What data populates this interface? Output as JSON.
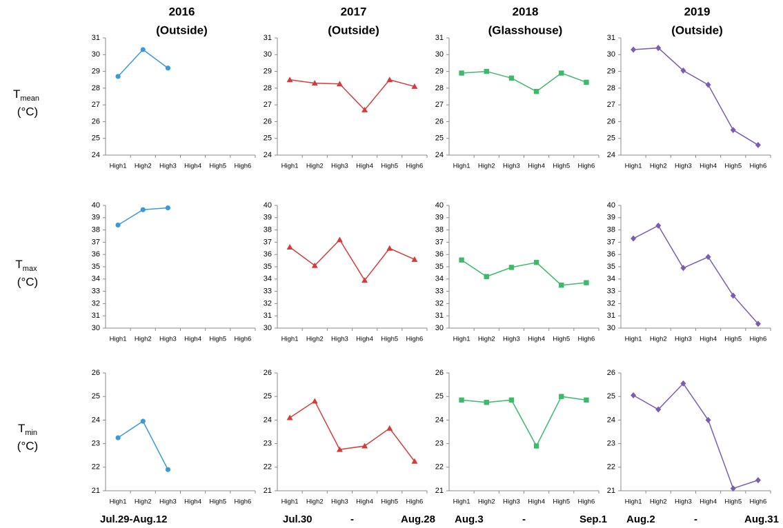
{
  "columns": [
    {
      "title": "2016",
      "subtitle": "(Outside)",
      "period": [
        "Jul.29-Aug.12"
      ]
    },
    {
      "title": "2017",
      "subtitle": "(Outside)",
      "period": [
        "Jul.30",
        "-",
        "Aug.28"
      ]
    },
    {
      "title": "2018",
      "subtitle": "(Glasshouse)",
      "period": [
        "Aug.3",
        "-",
        "Sep.1"
      ]
    },
    {
      "title": "2019",
      "subtitle": "(Outside)",
      "period": [
        "Aug.2",
        "-",
        "Aug.31"
      ]
    }
  ],
  "rows": [
    {
      "symbol": "T",
      "subscript": "mean",
      "unit": "(°C)"
    },
    {
      "symbol": "T",
      "subscript": "max",
      "unit": "(°C)"
    },
    {
      "symbol": "T",
      "subscript": "min",
      "unit": "(°C)"
    }
  ],
  "chart_data": [
    {
      "type": "line",
      "categories": [
        "High1",
        "High2",
        "High3",
        "High4",
        "High5",
        "High6"
      ],
      "values": [
        28.7,
        30.3,
        29.2,
        null,
        null,
        null
      ],
      "color": "#3a9ad9",
      "marker": "circle",
      "ylim": [
        24,
        31
      ],
      "yticks": [
        24,
        25,
        26,
        27,
        28,
        29,
        30,
        31
      ]
    },
    {
      "type": "line",
      "categories": [
        "High1",
        "High2",
        "High3",
        "High4",
        "High5",
        "High6"
      ],
      "values": [
        28.5,
        28.3,
        28.25,
        26.7,
        28.5,
        28.1
      ],
      "color": "#d63b3b",
      "marker": "triangle",
      "ylim": [
        24,
        31
      ],
      "yticks": [
        24,
        25,
        26,
        27,
        28,
        29,
        30,
        31
      ]
    },
    {
      "type": "line",
      "categories": [
        "High1",
        "High2",
        "High3",
        "High4",
        "High5",
        "High6"
      ],
      "values": [
        28.9,
        29.0,
        28.6,
        27.8,
        28.9,
        28.35
      ],
      "color": "#3cb96a",
      "marker": "square",
      "ylim": [
        24,
        31
      ],
      "yticks": [
        24,
        25,
        26,
        27,
        28,
        29,
        30,
        31
      ]
    },
    {
      "type": "line",
      "categories": [
        "High1",
        "High2",
        "High3",
        "High4",
        "High5",
        "High6"
      ],
      "values": [
        30.3,
        30.4,
        29.05,
        28.2,
        25.5,
        24.6
      ],
      "color": "#7a5cb0",
      "marker": "diamond",
      "ylim": [
        24,
        31
      ],
      "yticks": [
        24,
        25,
        26,
        27,
        28,
        29,
        30,
        31
      ]
    },
    {
      "type": "line",
      "categories": [
        "High1",
        "High2",
        "High3",
        "High4",
        "High5",
        "High6"
      ],
      "values": [
        38.4,
        39.65,
        39.8,
        null,
        null,
        null
      ],
      "color": "#3a9ad9",
      "marker": "circle",
      "ylim": [
        30,
        40
      ],
      "yticks": [
        30,
        31,
        32,
        33,
        34,
        35,
        36,
        37,
        38,
        39,
        40
      ]
    },
    {
      "type": "line",
      "categories": [
        "High1",
        "High2",
        "High3",
        "High4",
        "High5",
        "High6"
      ],
      "values": [
        36.6,
        35.1,
        37.2,
        33.9,
        36.5,
        35.6
      ],
      "color": "#d63b3b",
      "marker": "triangle",
      "ylim": [
        30,
        40
      ],
      "yticks": [
        30,
        31,
        32,
        33,
        34,
        35,
        36,
        37,
        38,
        39,
        40
      ]
    },
    {
      "type": "line",
      "categories": [
        "High1",
        "High2",
        "High3",
        "High4",
        "High5",
        "High6"
      ],
      "values": [
        35.55,
        34.2,
        34.95,
        35.35,
        33.5,
        33.7
      ],
      "color": "#3cb96a",
      "marker": "square",
      "ylim": [
        30,
        40
      ],
      "yticks": [
        30,
        31,
        32,
        33,
        34,
        35,
        36,
        37,
        38,
        39,
        40
      ]
    },
    {
      "type": "line",
      "categories": [
        "High1",
        "High2",
        "High3",
        "High4",
        "High5",
        "High6"
      ],
      "values": [
        37.3,
        38.35,
        34.9,
        35.8,
        32.65,
        30.35
      ],
      "color": "#7a5cb0",
      "marker": "diamond",
      "ylim": [
        30,
        40
      ],
      "yticks": [
        30,
        31,
        32,
        33,
        34,
        35,
        36,
        37,
        38,
        39,
        40
      ]
    },
    {
      "type": "line",
      "categories": [
        "High1",
        "High2",
        "High3",
        "High4",
        "High5",
        "High6"
      ],
      "values": [
        23.25,
        23.95,
        21.9,
        null,
        null,
        null
      ],
      "color": "#3a9ad9",
      "marker": "circle",
      "ylim": [
        21,
        26
      ],
      "yticks": [
        21,
        22,
        23,
        24,
        25,
        26
      ]
    },
    {
      "type": "line",
      "categories": [
        "High1",
        "High2",
        "High3",
        "High4",
        "High5",
        "High6"
      ],
      "values": [
        24.1,
        24.8,
        22.75,
        22.9,
        23.65,
        22.25
      ],
      "color": "#d63b3b",
      "marker": "triangle",
      "ylim": [
        21,
        26
      ],
      "yticks": [
        21,
        22,
        23,
        24,
        25,
        26
      ]
    },
    {
      "type": "line",
      "categories": [
        "High1",
        "High2",
        "High3",
        "High4",
        "High5",
        "High6"
      ],
      "values": [
        24.85,
        24.75,
        24.85,
        22.9,
        25.0,
        24.85
      ],
      "color": "#3cb96a",
      "marker": "square",
      "ylim": [
        21,
        26
      ],
      "yticks": [
        21,
        22,
        23,
        24,
        25,
        26
      ]
    },
    {
      "type": "line",
      "categories": [
        "High1",
        "High2",
        "High3",
        "High4",
        "High5",
        "High6"
      ],
      "values": [
        25.05,
        24.45,
        25.55,
        24.0,
        21.1,
        21.45
      ],
      "color": "#7a5cb0",
      "marker": "diamond",
      "ylim": [
        21,
        26
      ],
      "yticks": [
        21,
        22,
        23,
        24,
        25,
        26
      ]
    }
  ]
}
